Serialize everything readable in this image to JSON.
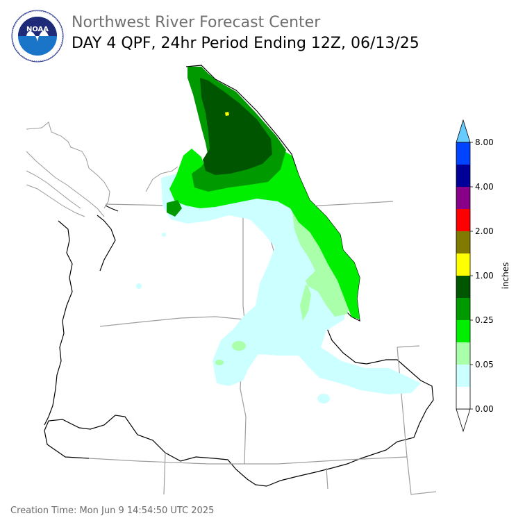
{
  "header": {
    "org_title": "Northwest River Forecast Center",
    "product_title": "DAY 4 QPF, 24hr Period Ending 12Z, 06/13/25"
  },
  "logo": {
    "text": "NOAA",
    "icon": "noaa-logo-icon",
    "ring_text": "NATIONAL OCEANIC AND ATMOSPHERIC ADMINISTRATION · U.S. DEPARTMENT OF COMMERCE"
  },
  "colorbar": {
    "unit_label": "inches",
    "ticks": [
      "0.00",
      "0.05",
      "0.25",
      "1.00",
      "2.00",
      "4.00",
      "8.00"
    ],
    "bins": [
      {
        "color": "#ffffff"
      },
      {
        "color": "#ccffff"
      },
      {
        "color": "#aaffaa"
      },
      {
        "color": "#00ee00"
      },
      {
        "color": "#009900"
      },
      {
        "color": "#005500"
      },
      {
        "color": "#ffff00"
      },
      {
        "color": "#807a00"
      },
      {
        "color": "#ff0000"
      },
      {
        "color": "#880088"
      },
      {
        "color": "#000099"
      },
      {
        "color": "#0044ff"
      }
    ],
    "over_color": "#66ccff"
  },
  "footer": {
    "creation_time": "Creation Time: Mon Jun 9 14:54:50 UTC 2025"
  }
}
